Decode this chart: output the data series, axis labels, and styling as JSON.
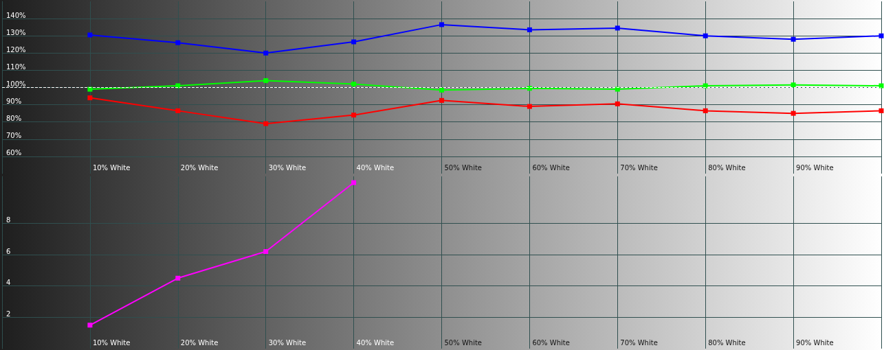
{
  "chart_data": [
    {
      "type": "line",
      "categories": [
        null,
        "10% White",
        "20% White",
        "30% White",
        "40% White",
        "50% White",
        "60% White",
        "70% White",
        "80% White",
        "90% White",
        null
      ],
      "ylim": [
        50,
        150
      ],
      "yticks": [
        {
          "value": 60,
          "label": "60%"
        },
        {
          "value": 70,
          "label": "70%"
        },
        {
          "value": 80,
          "label": "80%"
        },
        {
          "value": 90,
          "label": "90%"
        },
        {
          "value": 100,
          "label": "100%"
        },
        {
          "value": 110,
          "label": "110%"
        },
        {
          "value": 120,
          "label": "120%"
        },
        {
          "value": 130,
          "label": "130%"
        },
        {
          "value": 140,
          "label": "140%"
        }
      ],
      "grid": true,
      "marker": "square",
      "line_style": "solid",
      "series": [
        {
          "color": "#0000ff",
          "values": [
            null,
            130.5,
            126,
            120,
            126.5,
            136.5,
            133.5,
            134.5,
            130,
            128,
            130
          ]
        },
        {
          "color": "#00ff00",
          "values": [
            null,
            99,
            101,
            104,
            102,
            98.5,
            99.5,
            99,
            101,
            101.5,
            101
          ]
        },
        {
          "color": "#ff0000",
          "values": [
            null,
            94,
            86.5,
            79,
            84,
            92.5,
            89,
            90.5,
            86.5,
            85,
            86.5
          ]
        }
      ],
      "ref_lines": [
        {
          "axis": "y",
          "value": 100,
          "color": "#ffffff",
          "line_style": "dashed"
        }
      ]
    },
    {
      "type": "line",
      "categories": [
        null,
        "10% White",
        "20% White",
        "30% White",
        "40% White",
        "50% White",
        "60% White",
        "70% White",
        "80% White",
        "90% White",
        null
      ],
      "ylim": [
        0,
        11
      ],
      "yticks": [
        2,
        4,
        6,
        8
      ],
      "grid": true,
      "marker": "square",
      "line_style": "solid",
      "series": [
        {
          "color": "#ff00ff",
          "values": [
            null,
            1.5,
            4.5,
            6.2,
            10.6,
            null,
            null,
            null,
            null,
            null,
            null
          ]
        }
      ]
    }
  ]
}
